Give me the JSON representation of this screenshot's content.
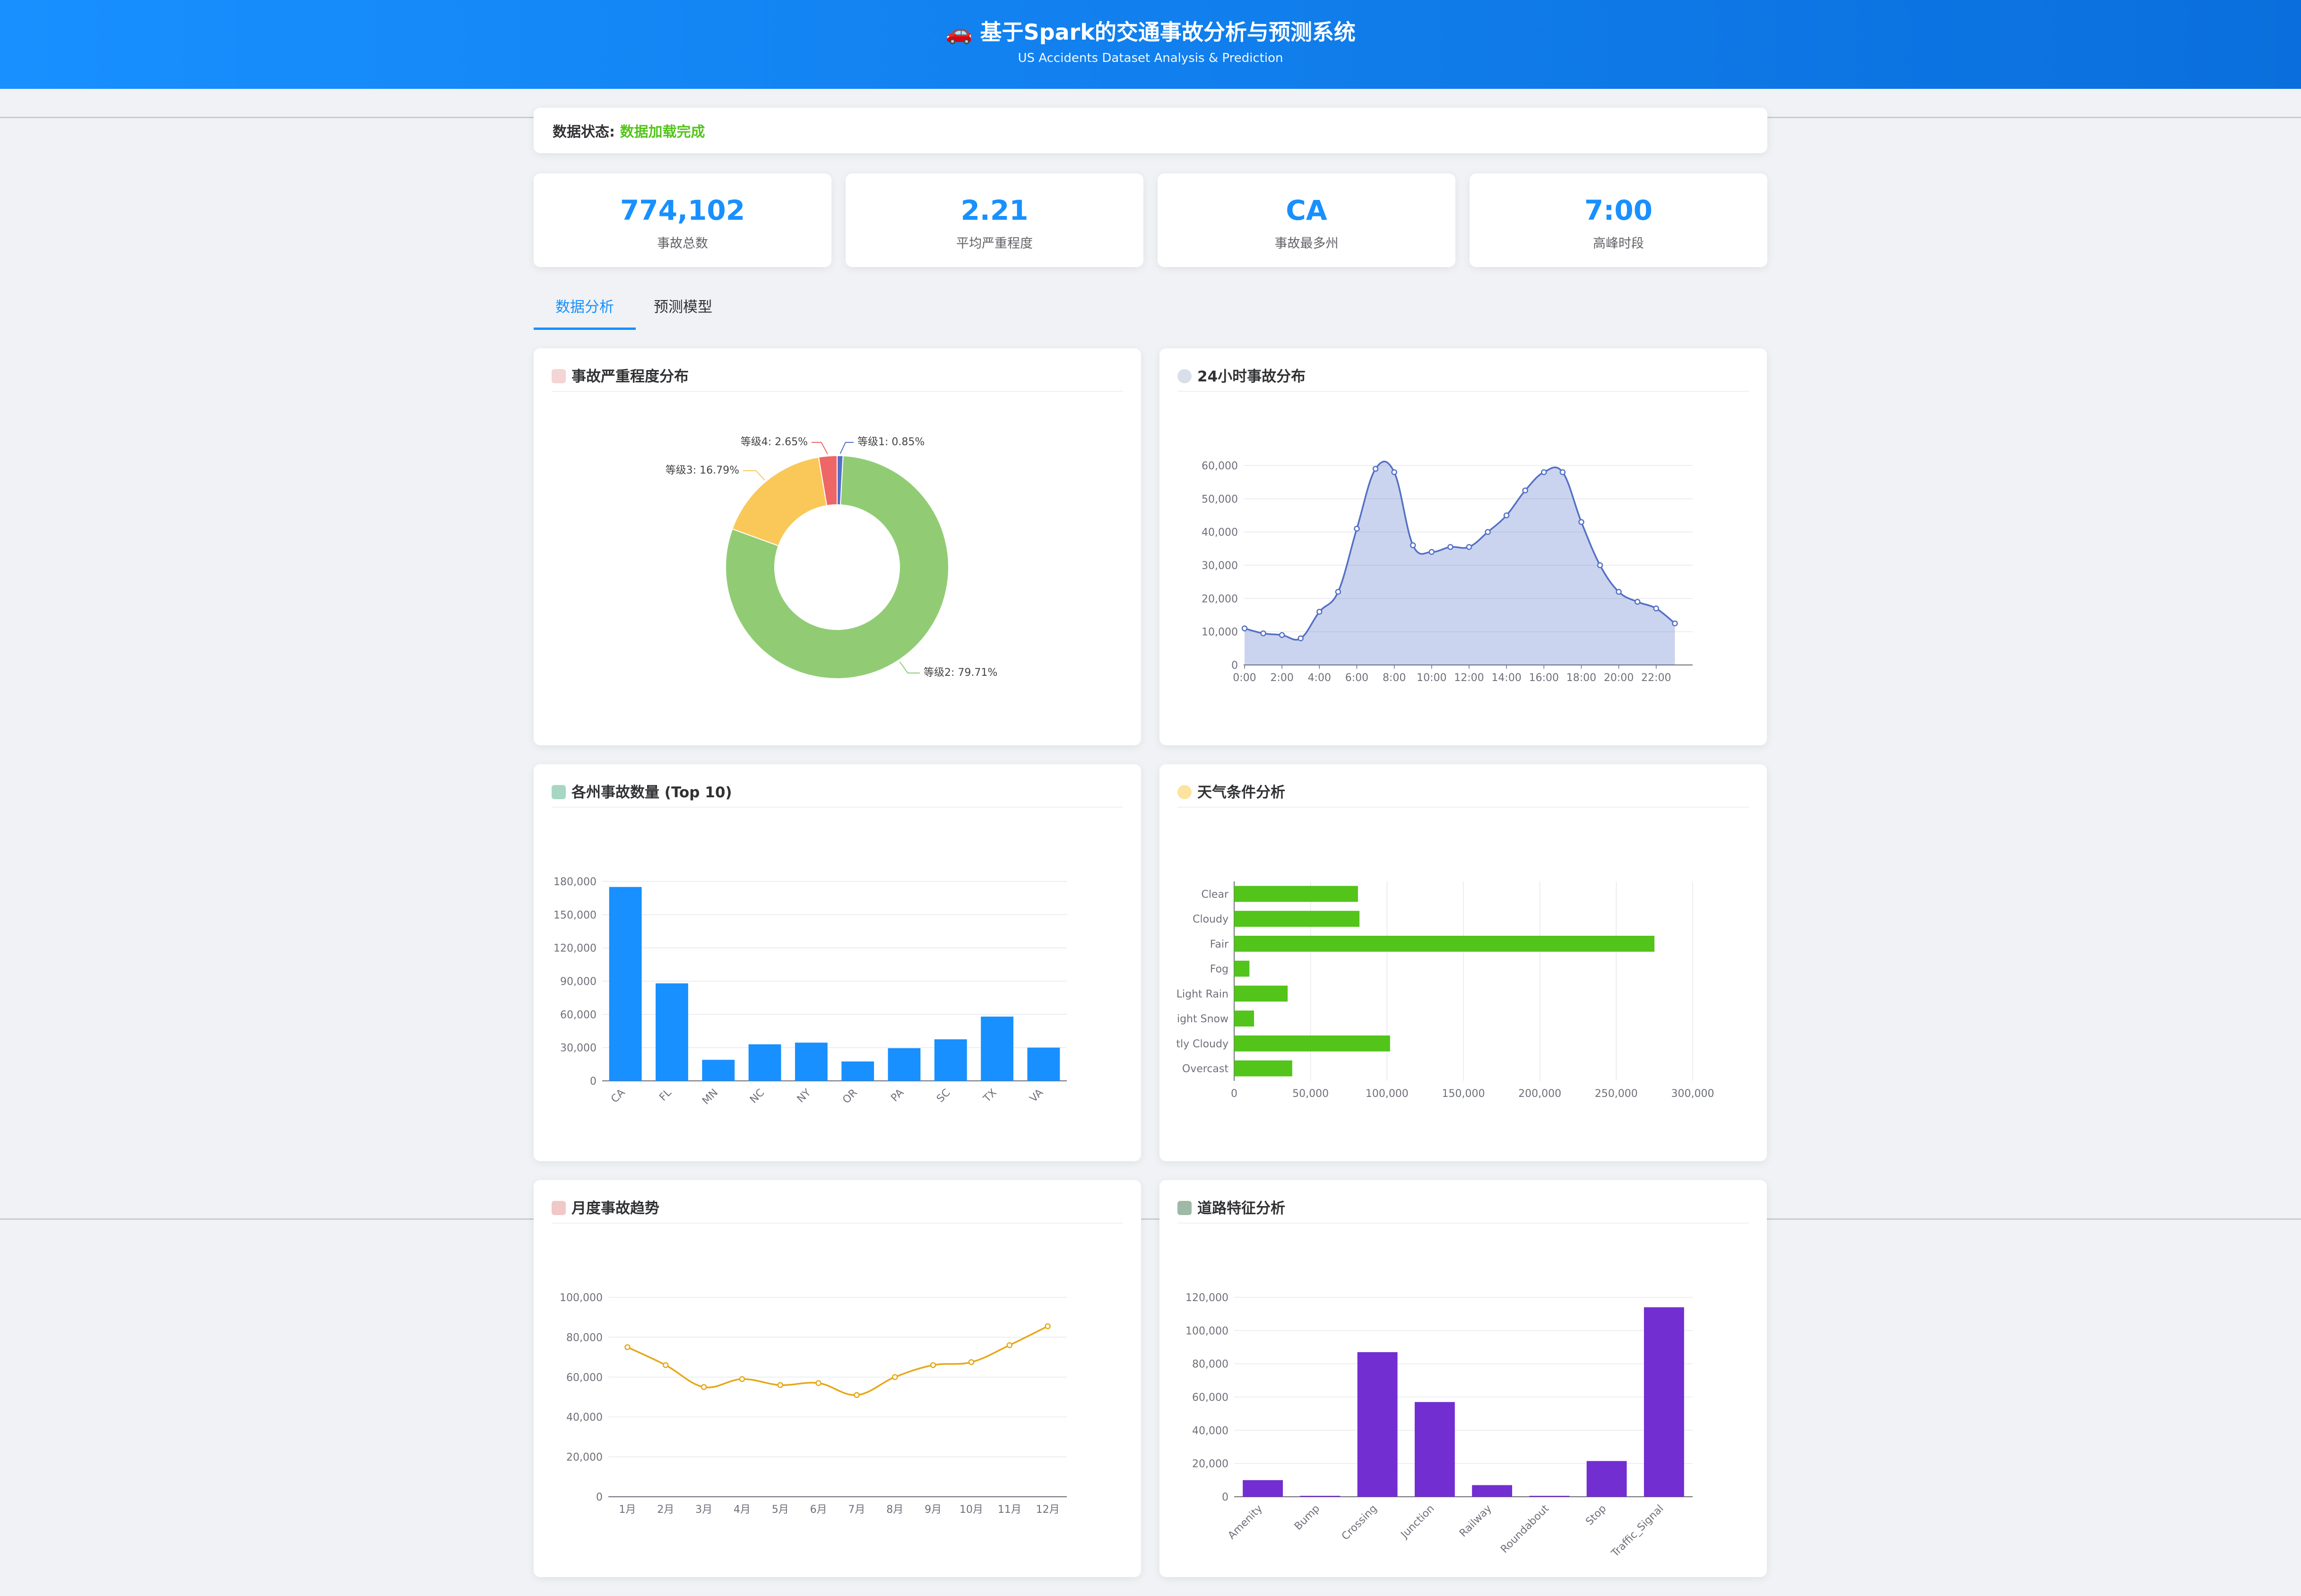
{
  "header": {
    "title": "🚗 基于Spark的交通事故分析与预测系统",
    "subtitle": "US Accidents Dataset Analysis & Prediction"
  },
  "status": {
    "label": "数据状态:",
    "value": "数据加载完成"
  },
  "stats": [
    {
      "value": "774,102",
      "label": "事故总数"
    },
    {
      "value": "2.21",
      "label": "平均严重程度"
    },
    {
      "value": "CA",
      "label": "事故最多州"
    },
    {
      "value": "7:00",
      "label": "高峰时段"
    }
  ],
  "tabs": [
    {
      "label": "数据分析",
      "active": true
    },
    {
      "label": "预测模型",
      "active": false
    }
  ],
  "panels": {
    "severity": {
      "title": "事故严重程度分布",
      "icon": "chart-icon"
    },
    "hourly": {
      "title": "24小时事故分布",
      "icon": "clock-icon"
    },
    "states": {
      "title": "各州事故数量 (Top 10)",
      "icon": "map-icon"
    },
    "weather": {
      "title": "天气条件分析",
      "icon": "weather-icon"
    },
    "monthly": {
      "title": "月度事故趋势",
      "icon": "calendar-icon"
    },
    "road": {
      "title": "道路特征分析",
      "icon": "car-icon"
    }
  },
  "chart_data": [
    {
      "id": "severity",
      "type": "pie",
      "donut": true,
      "categories": [
        "等级1",
        "等级2",
        "等级3",
        "等级4"
      ],
      "values": [
        0.85,
        79.71,
        16.79,
        2.65
      ],
      "data_labels": [
        "等级1: 0.85%",
        "等级2: 79.71%",
        "等级3: 16.79%",
        "等级4: 2.65%"
      ],
      "colors": [
        "#5470c6",
        "#91cc75",
        "#fac858",
        "#ee6666"
      ]
    },
    {
      "id": "hourly",
      "type": "area",
      "x": [
        "0:00",
        "1:00",
        "2:00",
        "3:00",
        "4:00",
        "5:00",
        "6:00",
        "7:00",
        "8:00",
        "9:00",
        "10:00",
        "11:00",
        "12:00",
        "13:00",
        "14:00",
        "15:00",
        "16:00",
        "17:00",
        "18:00",
        "19:00",
        "20:00",
        "21:00",
        "22:00",
        "23:00"
      ],
      "x_tick_labels": [
        "0:00",
        "2:00",
        "4:00",
        "6:00",
        "8:00",
        "10:00",
        "12:00",
        "14:00",
        "16:00",
        "18:00",
        "20:00",
        "22:00"
      ],
      "values": [
        11000,
        9500,
        9000,
        8000,
        16000,
        22000,
        41000,
        59000,
        58000,
        36000,
        34000,
        35500,
        35500,
        40000,
        45000,
        52500,
        58000,
        58000,
        43000,
        30000,
        22000,
        19000,
        17000,
        12500
      ],
      "ylim": [
        0,
        60000
      ],
      "y_ticks": [
        "0",
        "10,000",
        "20,000",
        "30,000",
        "40,000",
        "50,000",
        "60,000"
      ],
      "color": "#5470c6",
      "grid": true
    },
    {
      "id": "states",
      "type": "bar",
      "categories": [
        "CA",
        "FL",
        "MN",
        "NC",
        "NY",
        "OR",
        "PA",
        "SC",
        "TX",
        "VA"
      ],
      "values": [
        175000,
        88000,
        19000,
        33000,
        34500,
        17500,
        29500,
        37500,
        58000,
        30000
      ],
      "ylim": [
        0,
        180000
      ],
      "y_ticks": [
        "0",
        "30,000",
        "60,000",
        "90,000",
        "120,000",
        "150,000",
        "180,000"
      ],
      "color": "#1890ff",
      "grid": true
    },
    {
      "id": "weather",
      "type": "bar",
      "orientation": "horizontal",
      "categories": [
        "Clear",
        "Cloudy",
        "Fair",
        "Fog",
        "Light Rain",
        "Light Snow",
        "Partly Cloudy",
        "Overcast"
      ],
      "category_labels": [
        "Clear",
        "Cloudy",
        "Fair",
        "Fog",
        "Light Rain",
        "ight Snow",
        "tly Cloudy",
        "Overcast"
      ],
      "values": [
        81000,
        82000,
        275000,
        10000,
        35000,
        13000,
        102000,
        38000
      ],
      "xlim": [
        0,
        300000
      ],
      "x_ticks": [
        "0",
        "50,000",
        "100,000",
        "150,000",
        "200,000",
        "250,000",
        "300,000"
      ],
      "color": "#52c41a",
      "grid": true
    },
    {
      "id": "monthly",
      "type": "line",
      "categories": [
        "1月",
        "2月",
        "3月",
        "4月",
        "5月",
        "6月",
        "7月",
        "8月",
        "9月",
        "10月",
        "11月",
        "12月"
      ],
      "values": [
        75000,
        66000,
        55000,
        59000,
        56000,
        57000,
        51000,
        60000,
        66000,
        67500,
        76000,
        85500
      ],
      "ylim": [
        0,
        100000
      ],
      "y_ticks": [
        "0",
        "20,000",
        "40,000",
        "60,000",
        "80,000",
        "100,000"
      ],
      "color": "#e6a817",
      "grid": true
    },
    {
      "id": "road",
      "type": "bar",
      "categories": [
        "Amenity",
        "Bump",
        "Crossing",
        "Junction",
        "Railway",
        "Roundabout",
        "Stop",
        "Traffic_Signal"
      ],
      "values": [
        10000,
        500,
        87000,
        57000,
        7000,
        100,
        21500,
        114000
      ],
      "ylim": [
        0,
        120000
      ],
      "y_ticks": [
        "0",
        "20,000",
        "40,000",
        "60,000",
        "80,000",
        "100,000",
        "120,000"
      ],
      "color": "#722ed1",
      "grid": true
    }
  ]
}
